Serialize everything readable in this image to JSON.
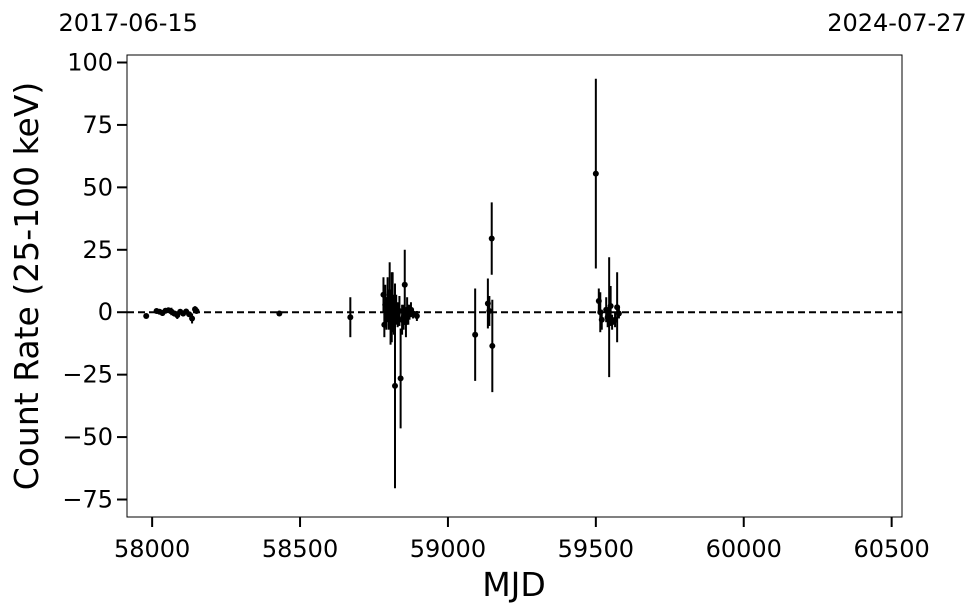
{
  "chart_data": {
    "type": "scatter",
    "xlabel": "MJD",
    "ylabel": "Count Rate (25-100 keV)",
    "top_axis_labels": [
      {
        "x": 57919,
        "label": "2017-06-15"
      },
      {
        "x": 60518,
        "label": "2024-07-27"
      }
    ],
    "xlim": [
      57915,
      60535
    ],
    "ylim": [
      -82,
      103
    ],
    "x_ticks": [
      58000,
      58500,
      59000,
      59500,
      60000,
      60500
    ],
    "x_tick_labels": [
      "58000",
      "58500",
      "59000",
      "59500",
      "60000",
      "60500"
    ],
    "y_ticks": [
      100,
      75,
      50,
      25,
      0,
      -25,
      -50,
      -75
    ],
    "y_tick_labels": [
      "100",
      "75",
      "50",
      "25",
      "0",
      "−25",
      "−50",
      "−75"
    ],
    "reference_line": {
      "y": 0,
      "style": "dashed"
    },
    "grid": false,
    "marker_color": "#000000",
    "series": [
      {
        "points": [
          {
            "x": 57980,
            "y": -1.5,
            "err": 0.8
          },
          {
            "x": 58015,
            "y": 0.5,
            "err": 1.0
          },
          {
            "x": 58025,
            "y": 0.2,
            "err": 1.0
          },
          {
            "x": 58035,
            "y": -0.3,
            "err": 1.2
          },
          {
            "x": 58045,
            "y": 0.6,
            "err": 1.0
          },
          {
            "x": 58055,
            "y": 0.8,
            "err": 1.0
          },
          {
            "x": 58065,
            "y": 0.3,
            "err": 1.5
          },
          {
            "x": 58075,
            "y": -0.5,
            "err": 1.2
          },
          {
            "x": 58085,
            "y": -1.2,
            "err": 1.5
          },
          {
            "x": 58095,
            "y": 0.2,
            "err": 1.0
          },
          {
            "x": 58105,
            "y": -0.5,
            "err": 1.2
          },
          {
            "x": 58115,
            "y": 0.3,
            "err": 1.0
          },
          {
            "x": 58125,
            "y": -0.8,
            "err": 1.0
          },
          {
            "x": 58135,
            "y": -2.5,
            "err": 2.0
          },
          {
            "x": 58145,
            "y": 1.2,
            "err": 1.2
          },
          {
            "x": 58150,
            "y": 0.5,
            "err": 1.0
          },
          {
            "x": 58430,
            "y": -0.5,
            "err": 1.0
          },
          {
            "x": 58670,
            "y": -2.0,
            "err": 8.0
          },
          {
            "x": 58782,
            "y": 7.0,
            "err": 7.0
          },
          {
            "x": 58785,
            "y": -5.0,
            "err": 5.0
          },
          {
            "x": 58788,
            "y": 3.0,
            "err": 8.0
          },
          {
            "x": 58792,
            "y": -1.0,
            "err": 6.0
          },
          {
            "x": 58796,
            "y": 5.0,
            "err": 9.0
          },
          {
            "x": 58800,
            "y": 1.0,
            "err": 8.0
          },
          {
            "x": 58803,
            "y": 8.0,
            "err": 12.0
          },
          {
            "x": 58806,
            "y": -3.0,
            "err": 10.0
          },
          {
            "x": 58810,
            "y": 2.0,
            "err": 14.0
          },
          {
            "x": 58813,
            "y": 4.0,
            "err": 12.0
          },
          {
            "x": 58817,
            "y": -1.0,
            "err": 8.0
          },
          {
            "x": 58821,
            "y": -29.5,
            "err": 41.0
          },
          {
            "x": 58825,
            "y": 1.0,
            "err": 6.0
          },
          {
            "x": 58830,
            "y": -1.0,
            "err": 5.0
          },
          {
            "x": 58836,
            "y": 0.5,
            "err": 6.0
          },
          {
            "x": 58840,
            "y": -26.5,
            "err": 20.0
          },
          {
            "x": 58845,
            "y": -3.0,
            "err": 6.0
          },
          {
            "x": 58850,
            "y": -2.0,
            "err": 5.0
          },
          {
            "x": 58854,
            "y": 11.0,
            "err": 14.0
          },
          {
            "x": 58858,
            "y": -4.0,
            "err": 6.0
          },
          {
            "x": 58862,
            "y": 1.0,
            "err": 5.0
          },
          {
            "x": 58866,
            "y": -1.0,
            "err": 4.0
          },
          {
            "x": 58870,
            "y": 0.0,
            "err": 3.0
          },
          {
            "x": 58875,
            "y": 1.0,
            "err": 3.0
          },
          {
            "x": 58882,
            "y": -0.5,
            "err": 2.0
          },
          {
            "x": 58895,
            "y": -1.5,
            "err": 2.0
          },
          {
            "x": 59092,
            "y": -9.0,
            "err": 18.5
          },
          {
            "x": 59135,
            "y": 3.5,
            "err": 10.0
          },
          {
            "x": 59140,
            "y": 0.5,
            "err": 6.0
          },
          {
            "x": 59148,
            "y": 29.5,
            "err": 14.5
          },
          {
            "x": 59150,
            "y": -13.5,
            "err": 18.5
          },
          {
            "x": 59500,
            "y": 55.5,
            "err": 38.0
          },
          {
            "x": 59510,
            "y": 4.5,
            "err": 5.0
          },
          {
            "x": 59515,
            "y": 0.0,
            "err": 8.0
          },
          {
            "x": 59520,
            "y": -3.0,
            "err": 4.0
          },
          {
            "x": 59535,
            "y": 1.0,
            "err": 5.0
          },
          {
            "x": 59540,
            "y": -2.0,
            "err": 4.0
          },
          {
            "x": 59545,
            "y": -2.0,
            "err": 24.0
          },
          {
            "x": 59550,
            "y": 2.5,
            "err": 8.0
          },
          {
            "x": 59555,
            "y": -4.0,
            "err": 3.0
          },
          {
            "x": 59565,
            "y": -3.0,
            "err": 3.0
          },
          {
            "x": 59572,
            "y": 2.0,
            "err": 14.0
          },
          {
            "x": 59578,
            "y": -0.5,
            "err": 2.0
          }
        ]
      }
    ]
  }
}
